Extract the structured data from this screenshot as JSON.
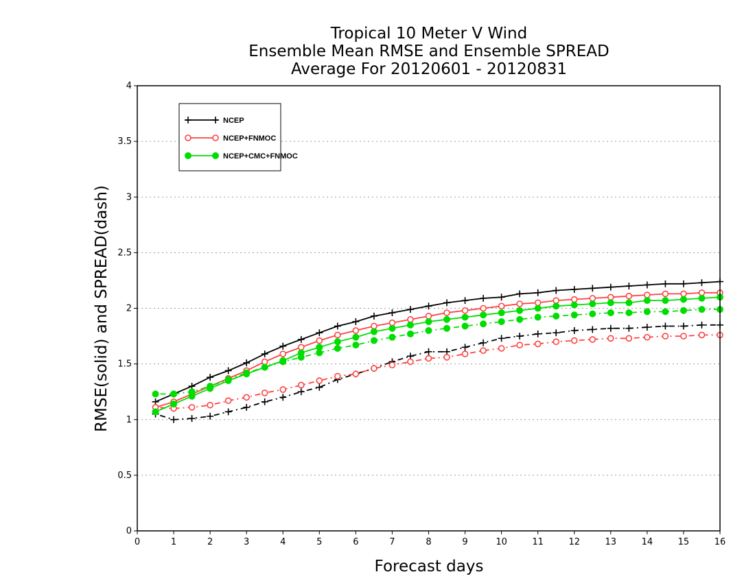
{
  "chart_data": {
    "type": "line",
    "title": [
      "Tropical 10 Meter V Wind",
      "Ensemble Mean RMSE and Ensemble SPREAD",
      "Average For 20120601 - 20120831"
    ],
    "xlabel": "Forecast days",
    "ylabel": "RMSE(solid) and SPREAD(dash)",
    "xlim": [
      0,
      16
    ],
    "ylim": [
      0,
      4
    ],
    "xticks": [
      "0",
      "1",
      "2",
      "3",
      "4",
      "5",
      "6",
      "7",
      "8",
      "9",
      "10",
      "11",
      "12",
      "13",
      "14",
      "15",
      "16"
    ],
    "yticks": [
      "0",
      "0.5",
      "1",
      "1.5",
      "2",
      "2.5",
      "3",
      "3.5",
      "4"
    ],
    "grid": "horizontal dotted",
    "legend_position": "top-left",
    "x": [
      0.5,
      1,
      1.5,
      2,
      2.5,
      3,
      3.5,
      4,
      4.5,
      5,
      5.5,
      6,
      6.5,
      7,
      7.5,
      8,
      8.5,
      9,
      9.5,
      10,
      10.5,
      11,
      11.5,
      12,
      12.5,
      13,
      13.5,
      14,
      14.5,
      15,
      15.5,
      16
    ],
    "series": [
      {
        "name": "NCEP",
        "color": "#000000",
        "marker": "plus",
        "rmse": [
          1.16,
          1.23,
          1.3,
          1.38,
          1.44,
          1.51,
          1.59,
          1.66,
          1.72,
          1.78,
          1.84,
          1.88,
          1.93,
          1.96,
          1.99,
          2.02,
          2.05,
          2.07,
          2.09,
          2.1,
          2.13,
          2.14,
          2.16,
          2.17,
          2.18,
          2.19,
          2.2,
          2.21,
          2.22,
          2.22,
          2.23,
          2.24
        ],
        "spread": [
          1.05,
          1.0,
          1.01,
          1.03,
          1.07,
          1.11,
          1.16,
          1.2,
          1.25,
          1.29,
          1.36,
          1.41,
          1.46,
          1.52,
          1.57,
          1.61,
          1.61,
          1.65,
          1.69,
          1.73,
          1.75,
          1.77,
          1.78,
          1.8,
          1.81,
          1.82,
          1.82,
          1.83,
          1.84,
          1.84,
          1.85,
          1.85
        ]
      },
      {
        "name": "NCEP+FNMOC",
        "color": "#ff4040",
        "marker": "open-circle",
        "rmse": [
          1.11,
          1.16,
          1.23,
          1.3,
          1.37,
          1.44,
          1.52,
          1.59,
          1.65,
          1.71,
          1.76,
          1.8,
          1.84,
          1.87,
          1.9,
          1.93,
          1.96,
          1.98,
          2.0,
          2.02,
          2.04,
          2.05,
          2.07,
          2.08,
          2.09,
          2.1,
          2.11,
          2.12,
          2.13,
          2.13,
          2.14,
          2.14
        ],
        "spread": [
          1.11,
          1.1,
          1.11,
          1.13,
          1.17,
          1.2,
          1.24,
          1.27,
          1.31,
          1.35,
          1.39,
          1.41,
          1.46,
          1.49,
          1.52,
          1.55,
          1.56,
          1.59,
          1.62,
          1.64,
          1.67,
          1.68,
          1.7,
          1.71,
          1.72,
          1.73,
          1.73,
          1.74,
          1.75,
          1.75,
          1.76,
          1.76
        ]
      },
      {
        "name": "NCEP+CMC+FNMOC",
        "color": "#00dd00",
        "marker": "filled-circle",
        "rmse": [
          1.07,
          1.14,
          1.21,
          1.28,
          1.35,
          1.41,
          1.47,
          1.53,
          1.6,
          1.65,
          1.7,
          1.74,
          1.79,
          1.82,
          1.85,
          1.88,
          1.9,
          1.92,
          1.94,
          1.96,
          1.98,
          2.0,
          2.02,
          2.03,
          2.04,
          2.05,
          2.05,
          2.07,
          2.07,
          2.08,
          2.09,
          2.1
        ],
        "spread": [
          1.23,
          1.23,
          1.25,
          1.3,
          1.36,
          1.42,
          1.47,
          1.52,
          1.56,
          1.6,
          1.64,
          1.67,
          1.71,
          1.74,
          1.77,
          1.8,
          1.82,
          1.84,
          1.86,
          1.88,
          1.9,
          1.92,
          1.93,
          1.94,
          1.95,
          1.96,
          1.96,
          1.97,
          1.97,
          1.98,
          1.99,
          1.99
        ]
      }
    ]
  }
}
